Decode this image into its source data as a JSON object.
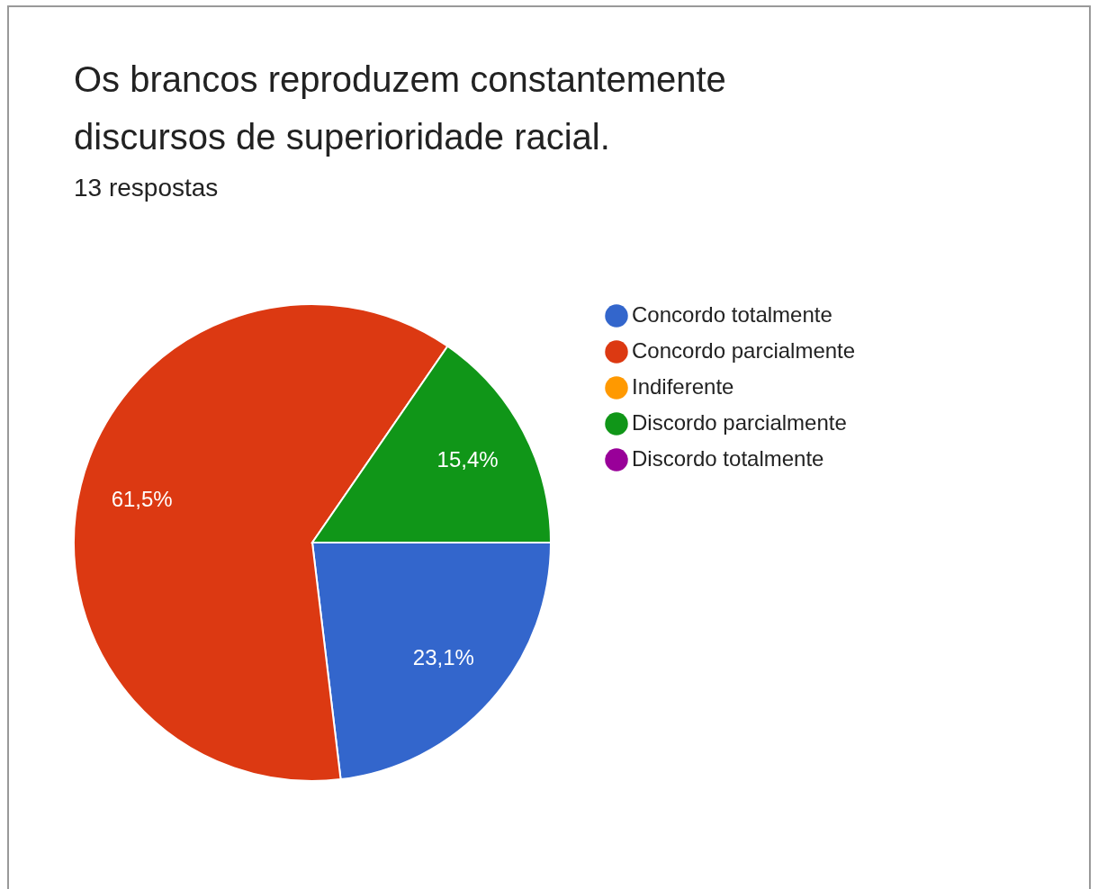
{
  "chart_data": {
    "type": "pie",
    "title": "Os brancos reproduzem constantemente discursos de superioridade racial.",
    "subtitle": "13 respostas",
    "categories": [
      "Concordo totalmente",
      "Concordo parcialmente",
      "Indiferente",
      "Discordo parcialmente",
      "Discordo totalmente"
    ],
    "values": [
      23.1,
      61.5,
      0,
      15.4,
      0
    ],
    "colors": [
      "#3366cc",
      "#dc3912",
      "#ff9900",
      "#109618",
      "#990099"
    ],
    "value_labels": [
      "23,1%",
      "61,5%",
      null,
      "15,4%",
      null
    ],
    "legend": "right"
  }
}
